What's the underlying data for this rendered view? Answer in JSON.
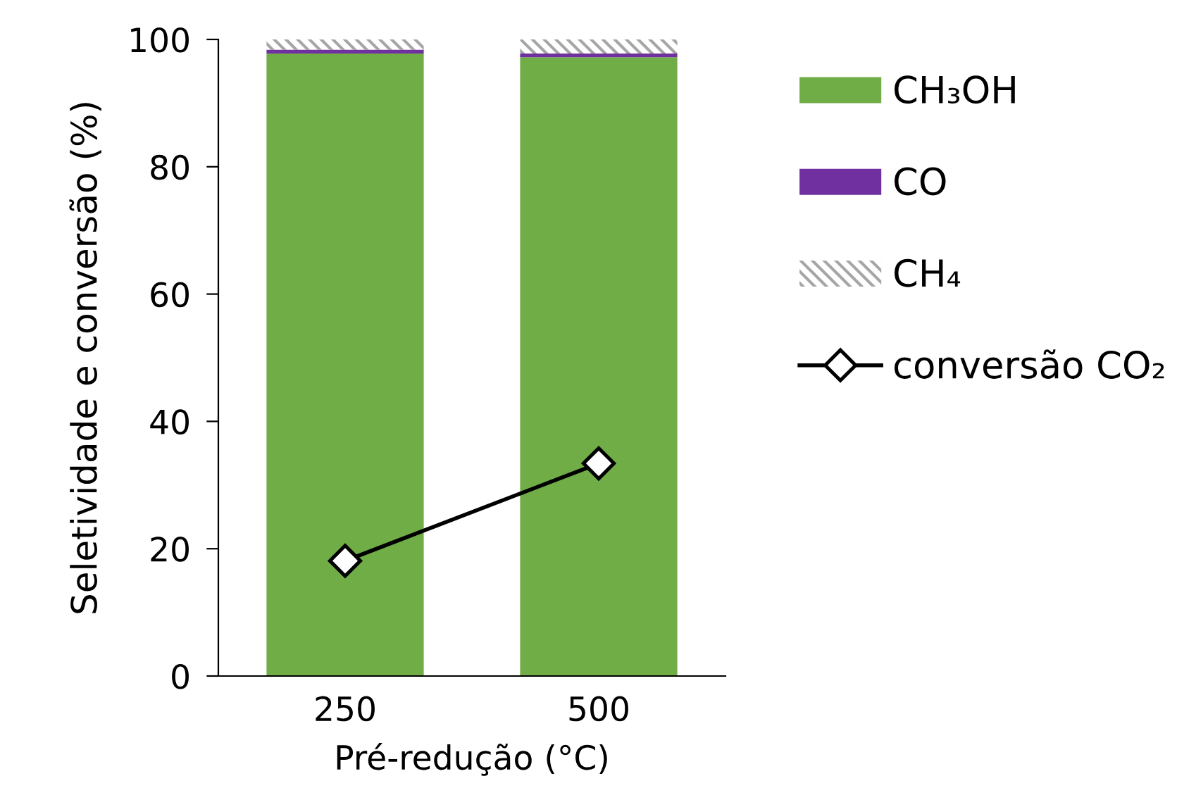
{
  "chart_data": {
    "type": "bar",
    "stacked": true,
    "xlabel": "Pré-redução (°C)",
    "ylabel": "Seletividade e conversão (%)",
    "categories": [
      "250",
      "500"
    ],
    "series": [
      {
        "name": "CH₃OH",
        "color": "#70ad47",
        "values": [
          97.8,
          97.2
        ]
      },
      {
        "name": "CO",
        "color": "#7030a0",
        "values": [
          0.6,
          0.6
        ]
      },
      {
        "name": "CH₄",
        "color": "#a6a6a6",
        "values": [
          1.6,
          2.2
        ]
      },
      {
        "name": "conversão CO₂",
        "type": "line",
        "color": "#000000",
        "values": [
          18.1,
          33.4
        ],
        "marker": "diamond"
      }
    ],
    "ylim": [
      0,
      100
    ],
    "yticks": [
      0,
      20,
      40,
      60,
      80,
      100
    ],
    "grid": false,
    "legend": "right"
  }
}
